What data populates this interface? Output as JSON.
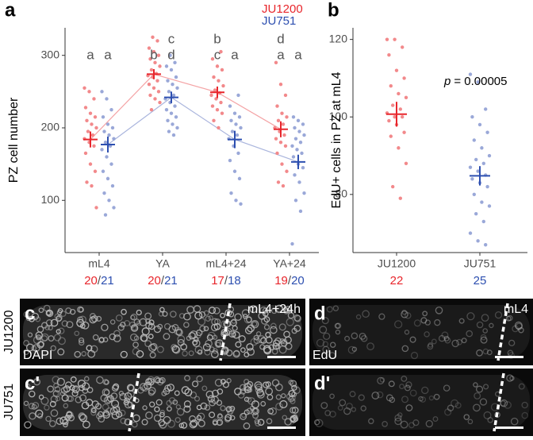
{
  "chart_data": [
    {
      "type": "grouped_strip",
      "panel": "a",
      "y_label": "PZ cell number",
      "categories": [
        "mL4",
        "YA",
        "mL4+24",
        "YA+24"
      ],
      "ylim": [
        28,
        338
      ],
      "yticks": [
        100,
        200,
        300
      ],
      "n_separator": "/",
      "series": [
        {
          "name": "JU1200",
          "color": "#e8262c",
          "point_color": "#f2898b",
          "line_color": "#f4a3a5",
          "points": [
            [
              255,
              250,
              240,
              228,
              220,
              215,
              210,
              205,
              200,
              195,
              190,
              185,
              180,
              175,
              165,
              150,
              140,
              125,
              120,
              90
            ],
            [
              325,
              320,
              310,
              305,
              300,
              295,
              290,
              285,
              280,
              275,
              272,
              270,
              265,
              260,
              255,
              250,
              245,
              240,
              235,
              225
            ],
            [
              305,
              295,
              285,
              280,
              270,
              265,
              258,
              252,
              248,
              245,
              240,
              235,
              230,
              225,
              220,
              210,
              200
            ],
            [
              290,
              260,
              245,
              230,
              220,
              215,
              210,
              205,
              200,
              195,
              190,
              185,
              180,
              175,
              165,
              150,
              140,
              125,
              120
            ]
          ],
          "means": [
            184,
            274,
            249,
            198
          ],
          "errors": [
            11,
            7,
            8,
            11
          ],
          "n": [
            20,
            20,
            17,
            19
          ],
          "letters": [
            [
              "a"
            ],
            [
              "b"
            ],
            [
              "b",
              "c"
            ],
            [
              "d",
              "a"
            ]
          ]
        },
        {
          "name": "JU751",
          "color": "#2d4fb0",
          "point_color": "#9aa8d8",
          "line_color": "#aab5dd",
          "points": [
            [
              250,
              240,
              225,
              215,
              205,
              200,
              195,
              190,
              185,
              180,
              175,
              170,
              160,
              150,
              140,
              130,
              120,
              110,
              100,
              90,
              80
            ],
            [
              300,
              290,
              285,
              280,
              270,
              265,
              260,
              255,
              250,
              245,
              240,
              235,
              230,
              225,
              220,
              215,
              210,
              205,
              200,
              195,
              190
            ],
            [
              245,
              230,
              220,
              215,
              210,
              205,
              200,
              195,
              190,
              185,
              175,
              165,
              155,
              140,
              130,
              110,
              100,
              95
            ],
            [
              215,
              210,
              205,
              200,
              195,
              190,
              185,
              180,
              175,
              170,
              165,
              160,
              150,
              145,
              135,
              125,
              110,
              100,
              85,
              40
            ]
          ],
          "means": [
            177,
            242,
            184,
            153
          ],
          "errors": [
            11,
            8,
            12,
            10
          ],
          "n": [
            21,
            21,
            18,
            20
          ],
          "letters": [
            [
              "a"
            ],
            [
              "c",
              "d"
            ],
            [
              "a"
            ],
            [
              "a"
            ]
          ]
        }
      ]
    },
    {
      "type": "strip",
      "panel": "b",
      "y_label": "EdU+ cells in PZ at mL4",
      "categories": [
        "JU1200",
        "JU751"
      ],
      "colors": [
        "#e8262c",
        "#2d4fb0"
      ],
      "point_colors": [
        "#f2898b",
        "#9aa8d8"
      ],
      "ylim": [
        65,
        123
      ],
      "yticks": [
        80,
        100,
        120
      ],
      "points": [
        [
          120,
          120,
          118,
          116,
          112,
          110,
          108,
          106,
          105,
          103,
          102,
          101,
          100,
          100,
          99,
          98,
          96,
          95,
          92,
          88,
          82,
          79
        ],
        [
          111,
          109,
          102,
          100,
          98,
          96,
          94,
          92,
          90,
          89,
          88,
          87,
          86,
          85,
          84,
          83,
          82,
          80,
          78,
          77,
          75,
          73,
          70,
          68,
          67
        ]
      ],
      "means": [
        100.7,
        84.8
      ],
      "errors": [
        3.2,
        2.5
      ],
      "n": [
        22,
        25
      ],
      "p_symbol": "p",
      "p_text": "= 0.00005"
    }
  ],
  "images": {
    "rows": [
      "JU1200",
      "JU751"
    ],
    "panels": [
      {
        "letter": "c",
        "stain": "DAPI",
        "stage": "mL4+24h"
      },
      {
        "letter": "c'"
      },
      {
        "letter": "d",
        "stain": "EdU",
        "stage": "mL4"
      },
      {
        "letter": "d'"
      }
    ]
  }
}
